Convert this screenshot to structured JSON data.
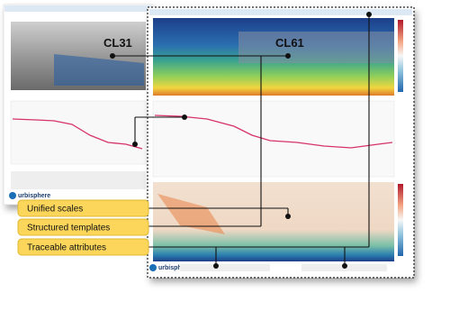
{
  "labels": {
    "cl31": "CL31",
    "cl61": "CL61"
  },
  "callouts": [
    "Unified scales",
    "Structured templates",
    "Traceable attributes"
  ],
  "logos": [
    "urbisphere",
    "urbisphere"
  ]
}
